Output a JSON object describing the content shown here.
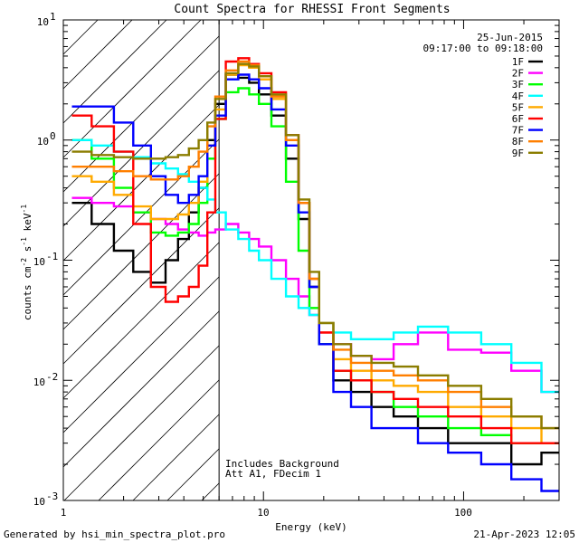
{
  "chart_data": {
    "type": "line",
    "title": "Count Spectra for RHESSI Front Segments",
    "xlabel": "Energy (keV)",
    "ylabel_parts": [
      "counts cm",
      "-2",
      " s",
      "-1",
      " keV",
      "-1"
    ],
    "xscale": "log",
    "yscale": "log",
    "xlim": [
      1,
      300
    ],
    "ylim": [
      0.001,
      10
    ],
    "x_tick_labels": [
      "1",
      "10",
      "100"
    ],
    "y_tick_labels": [
      {
        "base": "10",
        "exp": "1",
        "value": 10
      },
      {
        "base": "10",
        "exp": "0",
        "value": 1
      },
      {
        "base": "10",
        "exp": "-1",
        "value": 0.1
      },
      {
        "base": "10",
        "exp": "-2",
        "value": 0.01
      },
      {
        "base": "10",
        "exp": "-3",
        "value": 0.001
      }
    ],
    "date": "25-Jun-2015",
    "time_range": "09:17:00 to 09:18:00",
    "attenuator_cutoff_keV": 6,
    "annotations": [
      "Includes Background",
      "Att A1, FDecim 1"
    ],
    "footer_left": "Generated by hsi_min_spectra_plot.pro",
    "footer_right": "21-Apr-2023 12:05",
    "series": [
      {
        "name": "1F",
        "color": "#000000",
        "x": [
          1.2,
          1.6,
          2.0,
          2.5,
          3.0,
          3.5,
          4.0,
          4.5,
          5.0,
          5.5,
          6.0,
          7.0,
          8.0,
          9.0,
          10.0,
          12.0,
          14.0,
          16.0,
          18.0,
          20.0,
          25.0,
          30.0,
          40.0,
          50.0,
          70.0,
          100.0,
          150.0,
          200.0,
          300.0
        ],
        "y": [
          0.3,
          0.2,
          0.12,
          0.08,
          0.065,
          0.1,
          0.15,
          0.25,
          0.4,
          1.0,
          2.0,
          3.5,
          3.3,
          3.0,
          2.4,
          1.6,
          0.7,
          0.22,
          0.06,
          0.02,
          0.01,
          0.008,
          0.006,
          0.005,
          0.004,
          0.003,
          0.003,
          0.002,
          0.0025
        ]
      },
      {
        "name": "2F",
        "color": "#ff00ff",
        "x": [
          1.2,
          1.6,
          2.0,
          2.5,
          3.0,
          3.5,
          4.0,
          4.5,
          5.0,
          5.5,
          6.0,
          7.0,
          8.0,
          9.0,
          10.0,
          12.0,
          14.0,
          16.0,
          18.0,
          20.0,
          25.0,
          30.0,
          40.0,
          50.0,
          70.0,
          100.0,
          150.0,
          200.0,
          300.0
        ],
        "y": [
          0.33,
          0.3,
          0.28,
          0.25,
          0.22,
          0.2,
          0.18,
          0.17,
          0.16,
          0.17,
          0.18,
          0.2,
          0.17,
          0.15,
          0.13,
          0.1,
          0.07,
          0.05,
          0.035,
          0.025,
          0.02,
          0.016,
          0.015,
          0.02,
          0.025,
          0.018,
          0.017,
          0.012,
          0.008
        ]
      },
      {
        "name": "3F",
        "color": "#00ff00",
        "x": [
          1.2,
          1.6,
          2.0,
          2.5,
          3.0,
          3.5,
          4.0,
          4.5,
          5.0,
          5.5,
          6.0,
          7.0,
          8.0,
          9.0,
          10.0,
          12.0,
          14.0,
          16.0,
          18.0,
          20.0,
          25.0,
          30.0,
          40.0,
          50.0,
          70.0,
          100.0,
          150.0,
          200.0,
          300.0
        ],
        "y": [
          1.0,
          0.7,
          0.4,
          0.25,
          0.17,
          0.16,
          0.17,
          0.2,
          0.3,
          0.7,
          1.5,
          2.5,
          2.7,
          2.4,
          2.0,
          1.3,
          0.45,
          0.12,
          0.04,
          0.02,
          0.012,
          0.01,
          0.008,
          0.006,
          0.005,
          0.004,
          0.0035,
          0.003,
          0.003
        ]
      },
      {
        "name": "4F",
        "color": "#00ffff",
        "x": [
          1.2,
          1.6,
          2.0,
          2.5,
          3.0,
          3.5,
          4.0,
          4.5,
          5.0,
          5.5,
          6.0,
          7.0,
          8.0,
          9.0,
          10.0,
          12.0,
          14.0,
          16.0,
          18.0,
          20.0,
          25.0,
          30.0,
          40.0,
          50.0,
          70.0,
          100.0,
          150.0,
          200.0,
          300.0
        ],
        "y": [
          1.0,
          0.9,
          0.8,
          0.72,
          0.64,
          0.58,
          0.52,
          0.45,
          0.4,
          0.32,
          0.25,
          0.18,
          0.15,
          0.12,
          0.1,
          0.07,
          0.05,
          0.04,
          0.035,
          0.03,
          0.025,
          0.022,
          0.022,
          0.025,
          0.028,
          0.025,
          0.02,
          0.014,
          0.008
        ]
      },
      {
        "name": "5F",
        "color": "#ffaa00",
        "x": [
          1.2,
          1.6,
          2.0,
          2.5,
          3.0,
          3.5,
          4.0,
          4.5,
          5.0,
          5.5,
          6.0,
          7.0,
          8.0,
          9.0,
          10.0,
          12.0,
          14.0,
          16.0,
          18.0,
          20.0,
          25.0,
          30.0,
          40.0,
          50.0,
          70.0,
          100.0,
          150.0,
          200.0,
          300.0
        ],
        "y": [
          0.5,
          0.45,
          0.35,
          0.28,
          0.22,
          0.22,
          0.24,
          0.3,
          0.45,
          0.9,
          1.8,
          3.5,
          4.2,
          4.0,
          3.2,
          2.2,
          1.0,
          0.3,
          0.07,
          0.025,
          0.015,
          0.012,
          0.01,
          0.009,
          0.008,
          0.006,
          0.005,
          0.004,
          0.003
        ]
      },
      {
        "name": "6F",
        "color": "#ff0000",
        "x": [
          1.2,
          1.6,
          2.0,
          2.5,
          3.0,
          3.5,
          4.0,
          4.5,
          5.0,
          5.5,
          6.0,
          7.0,
          8.0,
          9.0,
          10.0,
          12.0,
          14.0,
          16.0,
          18.0,
          20.0,
          25.0,
          30.0,
          40.0,
          50.0,
          70.0,
          100.0,
          150.0,
          200.0,
          300.0
        ],
        "y": [
          1.6,
          1.3,
          0.8,
          0.2,
          0.06,
          0.045,
          0.05,
          0.06,
          0.09,
          0.25,
          1.5,
          4.5,
          4.8,
          4.3,
          3.6,
          2.5,
          1.1,
          0.3,
          0.07,
          0.025,
          0.012,
          0.01,
          0.008,
          0.007,
          0.006,
          0.005,
          0.004,
          0.003,
          0.003
        ]
      },
      {
        "name": "7F",
        "color": "#0000ff",
        "x": [
          1.2,
          1.6,
          2.0,
          2.5,
          3.0,
          3.5,
          4.0,
          4.5,
          5.0,
          5.5,
          6.0,
          7.0,
          8.0,
          9.0,
          10.0,
          12.0,
          14.0,
          16.0,
          18.0,
          20.0,
          25.0,
          30.0,
          40.0,
          50.0,
          70.0,
          100.0,
          150.0,
          200.0,
          300.0
        ],
        "y": [
          1.9,
          1.9,
          1.4,
          0.9,
          0.5,
          0.35,
          0.3,
          0.35,
          0.5,
          0.9,
          1.6,
          3.2,
          3.5,
          3.2,
          2.7,
          1.8,
          0.9,
          0.25,
          0.06,
          0.02,
          0.008,
          0.006,
          0.004,
          0.004,
          0.003,
          0.0025,
          0.002,
          0.0015,
          0.0012
        ]
      },
      {
        "name": "8F",
        "color": "#ff7f00",
        "x": [
          1.2,
          1.6,
          2.0,
          2.5,
          3.0,
          3.5,
          4.0,
          4.5,
          5.0,
          5.5,
          6.0,
          7.0,
          8.0,
          9.0,
          10.0,
          12.0,
          14.0,
          16.0,
          18.0,
          20.0,
          25.0,
          30.0,
          40.0,
          50.0,
          70.0,
          100.0,
          150.0,
          200.0,
          300.0
        ],
        "y": [
          0.6,
          0.6,
          0.55,
          0.5,
          0.47,
          0.47,
          0.5,
          0.6,
          0.8,
          1.3,
          2.3,
          3.8,
          4.5,
          4.2,
          3.4,
          2.3,
          1.0,
          0.3,
          0.07,
          0.03,
          0.018,
          0.014,
          0.012,
          0.011,
          0.01,
          0.008,
          0.006,
          0.005,
          0.004
        ]
      },
      {
        "name": "9F",
        "color": "#8b7d00",
        "x": [
          1.2,
          1.6,
          2.0,
          2.5,
          3.0,
          3.5,
          4.0,
          4.5,
          5.0,
          5.5,
          6.0,
          7.0,
          8.0,
          9.0,
          10.0,
          12.0,
          14.0,
          16.0,
          18.0,
          20.0,
          25.0,
          30.0,
          40.0,
          50.0,
          70.0,
          100.0,
          150.0,
          200.0,
          300.0
        ],
        "y": [
          0.8,
          0.75,
          0.72,
          0.7,
          0.7,
          0.72,
          0.75,
          0.85,
          1.0,
          1.4,
          2.2,
          3.6,
          4.3,
          4.1,
          3.4,
          2.4,
          1.1,
          0.32,
          0.08,
          0.03,
          0.02,
          0.016,
          0.014,
          0.013,
          0.011,
          0.009,
          0.007,
          0.005,
          0.004
        ]
      }
    ]
  }
}
